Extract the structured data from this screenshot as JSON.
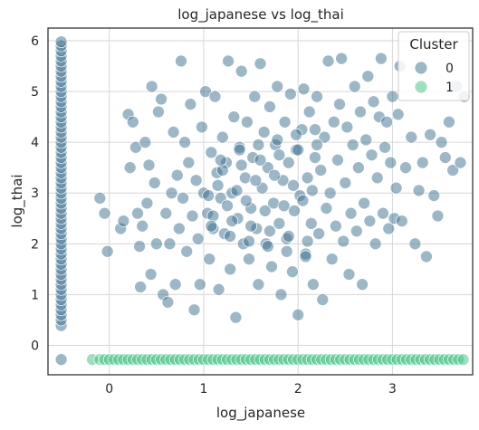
{
  "chart_data": {
    "type": "scatter",
    "title": "log_japanese vs log_thai",
    "xlabel": "log_japanese",
    "ylabel": "log_thai",
    "xlim": [
      -0.65,
      3.85
    ],
    "ylim": [
      -0.58,
      6.25
    ],
    "xticks": [
      0,
      1,
      2,
      3
    ],
    "yticks": [
      0,
      1,
      2,
      3,
      4,
      5,
      6
    ],
    "grid": true,
    "legend": {
      "title": "Cluster",
      "placement": "top-right",
      "entries": [
        {
          "label": "0",
          "color": "#3b6f8f"
        },
        {
          "label": "1",
          "color": "#3fbf7f"
        }
      ]
    },
    "series": [
      {
        "name": "0",
        "color": "#3b6f8f",
        "x_strip": -0.51,
        "y_strip": [
          0.39,
          0.5,
          0.6,
          0.7,
          0.8,
          0.9,
          1.0,
          1.1,
          1.2,
          1.3,
          1.4,
          1.5,
          1.6,
          1.7,
          1.8,
          1.9,
          2.0,
          2.1,
          2.2,
          2.3,
          2.4,
          2.5,
          2.6,
          2.7,
          2.8,
          2.9,
          3.0,
          3.1,
          3.2,
          3.3,
          3.4,
          3.5,
          3.6,
          3.7,
          3.8,
          3.9,
          4.0,
          4.1,
          4.2,
          4.3,
          4.4,
          4.5,
          4.6,
          4.7,
          4.8,
          4.9,
          5.0,
          5.1,
          5.2,
          5.3,
          5.4,
          5.5,
          5.6,
          5.7,
          5.8,
          5.9,
          5.98
        ],
        "points": [
          [
            -0.1,
            2.9
          ],
          [
            -0.05,
            2.6
          ],
          [
            -0.02,
            1.85
          ],
          [
            0.12,
            2.3
          ],
          [
            0.15,
            2.45
          ],
          [
            0.2,
            4.55
          ],
          [
            0.22,
            3.5
          ],
          [
            0.25,
            4.4
          ],
          [
            0.28,
            3.9
          ],
          [
            0.3,
            2.6
          ],
          [
            0.32,
            1.95
          ],
          [
            0.33,
            1.15
          ],
          [
            0.35,
            2.35
          ],
          [
            0.38,
            4.0
          ],
          [
            0.4,
            2.8
          ],
          [
            0.42,
            3.55
          ],
          [
            0.44,
            1.4
          ],
          [
            0.45,
            5.1
          ],
          [
            0.48,
            3.2
          ],
          [
            0.5,
            2.0
          ],
          [
            0.52,
            4.6
          ],
          [
            0.55,
            4.85
          ],
          [
            0.57,
            1.0
          ],
          [
            0.6,
            2.6
          ],
          [
            0.62,
            0.85
          ],
          [
            0.64,
            2.0
          ],
          [
            0.66,
            3.0
          ],
          [
            0.68,
            4.2
          ],
          [
            0.7,
            1.2
          ],
          [
            0.72,
            3.35
          ],
          [
            0.74,
            2.3
          ],
          [
            0.76,
            5.6
          ],
          [
            0.78,
            2.9
          ],
          [
            0.8,
            4.0
          ],
          [
            0.82,
            1.85
          ],
          [
            0.84,
            3.6
          ],
          [
            0.86,
            4.75
          ],
          [
            0.88,
            2.55
          ],
          [
            0.9,
            0.7
          ],
          [
            0.92,
            3.25
          ],
          [
            0.94,
            2.1
          ],
          [
            0.96,
            1.2
          ],
          [
            0.98,
            4.3
          ],
          [
            1.0,
            3.0
          ],
          [
            1.02,
            5.0
          ],
          [
            1.04,
            2.6
          ],
          [
            1.06,
            1.7
          ],
          [
            1.08,
            3.8
          ],
          [
            1.1,
            2.3
          ],
          [
            1.12,
            4.9
          ],
          [
            1.14,
            3.4
          ],
          [
            1.16,
            1.1
          ],
          [
            1.18,
            2.9
          ],
          [
            1.2,
            4.1
          ],
          [
            1.22,
            2.2
          ],
          [
            1.24,
            3.6
          ],
          [
            1.26,
            5.6
          ],
          [
            1.28,
            1.5
          ],
          [
            1.3,
            3.0
          ],
          [
            1.32,
            4.5
          ],
          [
            1.34,
            0.55
          ],
          [
            1.36,
            2.5
          ],
          [
            1.38,
            3.9
          ],
          [
            1.4,
            5.4
          ],
          [
            1.42,
            2.0
          ],
          [
            1.44,
            3.3
          ],
          [
            1.46,
            4.4
          ],
          [
            1.48,
            1.7
          ],
          [
            1.5,
            2.7
          ],
          [
            1.52,
            3.7
          ],
          [
            1.54,
            4.9
          ],
          [
            1.56,
            2.3
          ],
          [
            1.58,
            1.2
          ],
          [
            1.6,
            5.55
          ],
          [
            1.62,
            3.1
          ],
          [
            1.64,
            4.2
          ],
          [
            1.66,
            2.0
          ],
          [
            1.68,
            3.5
          ],
          [
            1.7,
            4.7
          ],
          [
            1.72,
            1.55
          ],
          [
            1.74,
            2.8
          ],
          [
            1.76,
            3.95
          ],
          [
            1.78,
            5.1
          ],
          [
            1.8,
            2.4
          ],
          [
            1.82,
            1.0
          ],
          [
            1.84,
            3.25
          ],
          [
            1.86,
            4.4
          ],
          [
            1.88,
            2.1
          ],
          [
            1.9,
            3.6
          ],
          [
            1.92,
            4.95
          ],
          [
            1.94,
            1.45
          ],
          [
            1.96,
            2.65
          ],
          [
            1.98,
            3.85
          ],
          [
            2.0,
            0.6
          ],
          [
            2.02,
            2.95
          ],
          [
            2.04,
            4.25
          ],
          [
            2.06,
            5.05
          ],
          [
            2.08,
            1.8
          ],
          [
            2.1,
            3.3
          ],
          [
            2.12,
            4.6
          ],
          [
            2.14,
            2.4
          ],
          [
            2.16,
            1.2
          ],
          [
            2.18,
            3.7
          ],
          [
            2.2,
            4.9
          ],
          [
            2.22,
            2.2
          ],
          [
            2.24,
            3.45
          ],
          [
            2.26,
            0.9
          ],
          [
            2.28,
            4.1
          ],
          [
            2.3,
            2.7
          ],
          [
            2.32,
            5.6
          ],
          [
            2.34,
            3.0
          ],
          [
            2.36,
            1.7
          ],
          [
            2.38,
            4.4
          ],
          [
            2.4,
            2.35
          ],
          [
            2.42,
            3.65
          ],
          [
            2.44,
            4.75
          ],
          [
            2.46,
            5.65
          ],
          [
            2.48,
            2.05
          ],
          [
            2.5,
            3.2
          ],
          [
            2.52,
            4.3
          ],
          [
            2.54,
            1.4
          ],
          [
            2.56,
            2.6
          ],
          [
            2.58,
            3.95
          ],
          [
            2.6,
            5.1
          ],
          [
            2.62,
            2.25
          ],
          [
            2.64,
            3.5
          ],
          [
            2.66,
            4.6
          ],
          [
            2.68,
            1.2
          ],
          [
            2.7,
            2.8
          ],
          [
            2.72,
            4.05
          ],
          [
            2.74,
            5.3
          ],
          [
            2.76,
            2.45
          ],
          [
            2.78,
            3.75
          ],
          [
            2.8,
            4.8
          ],
          [
            2.82,
            2.0
          ],
          [
            2.84,
            3.3
          ],
          [
            2.86,
            4.5
          ],
          [
            2.88,
            5.65
          ],
          [
            2.9,
            2.6
          ],
          [
            2.92,
            3.9
          ],
          [
            2.94,
            4.4
          ],
          [
            2.96,
            2.3
          ],
          [
            2.98,
            3.6
          ],
          [
            3.0,
            4.9
          ],
          [
            3.02,
            2.5
          ],
          [
            3.04,
            3.1
          ],
          [
            3.06,
            4.55
          ],
          [
            3.08,
            5.5
          ],
          [
            3.1,
            2.45
          ],
          [
            3.14,
            3.5
          ],
          [
            3.2,
            4.1
          ],
          [
            3.24,
            2.0
          ],
          [
            3.28,
            3.05
          ],
          [
            3.32,
            3.6
          ],
          [
            3.36,
            1.75
          ],
          [
            3.4,
            4.15
          ],
          [
            3.44,
            2.95
          ],
          [
            3.48,
            2.55
          ],
          [
            3.52,
            4.0
          ],
          [
            3.56,
            3.7
          ],
          [
            3.6,
            4.4
          ],
          [
            3.64,
            3.45
          ],
          [
            3.68,
            5.1
          ],
          [
            3.72,
            3.6
          ],
          [
            3.76,
            4.9
          ],
          [
            1.05,
            2.95
          ],
          [
            1.15,
            3.15
          ],
          [
            1.25,
            2.75
          ],
          [
            1.35,
            3.05
          ],
          [
            1.45,
            2.85
          ],
          [
            1.55,
            3.25
          ],
          [
            1.65,
            2.65
          ],
          [
            1.75,
            3.35
          ],
          [
            1.85,
            2.75
          ],
          [
            1.95,
            3.15
          ],
          [
            2.05,
            2.85
          ],
          [
            2.15,
            3.05
          ],
          [
            1.1,
            2.55
          ],
          [
            1.2,
            3.45
          ],
          [
            1.3,
            2.45
          ],
          [
            1.4,
            3.55
          ],
          [
            1.5,
            2.35
          ],
          [
            1.6,
            3.65
          ],
          [
            1.7,
            2.25
          ],
          [
            1.8,
            3.75
          ],
          [
            1.9,
            2.15
          ],
          [
            2.0,
            3.85
          ],
          [
            2.1,
            2.05
          ],
          [
            2.2,
            3.95
          ],
          [
            1.08,
            2.35
          ],
          [
            1.18,
            3.65
          ],
          [
            1.28,
            2.15
          ],
          [
            1.38,
            3.85
          ],
          [
            1.48,
            2.05
          ],
          [
            1.58,
            3.95
          ],
          [
            1.68,
            1.95
          ],
          [
            1.78,
            4.05
          ],
          [
            1.88,
            1.85
          ],
          [
            1.98,
            4.15
          ],
          [
            2.08,
            1.75
          ],
          [
            2.18,
            4.25
          ]
        ]
      },
      {
        "name": "1",
        "color": "#3fbf7f",
        "y_constant": -0.28,
        "x": [
          -0.18,
          -0.1,
          -0.05,
          0.0,
          0.05,
          0.1,
          0.15,
          0.2,
          0.25,
          0.3,
          0.35,
          0.4,
          0.45,
          0.5,
          0.55,
          0.6,
          0.65,
          0.7,
          0.75,
          0.8,
          0.85,
          0.9,
          0.95,
          1.0,
          1.05,
          1.1,
          1.15,
          1.2,
          1.25,
          1.3,
          1.35,
          1.4,
          1.45,
          1.5,
          1.55,
          1.6,
          1.65,
          1.7,
          1.75,
          1.8,
          1.85,
          1.9,
          1.95,
          2.0,
          2.05,
          2.1,
          2.15,
          2.2,
          2.25,
          2.3,
          2.35,
          2.4,
          2.45,
          2.5,
          2.55,
          2.6,
          2.65,
          2.7,
          2.75,
          2.8,
          2.85,
          2.9,
          2.95,
          3.0,
          3.05,
          3.1,
          3.15,
          3.2,
          3.25,
          3.3,
          3.35,
          3.4,
          3.45,
          3.5,
          3.55,
          3.6,
          3.65,
          3.7,
          3.75
        ]
      }
    ]
  }
}
